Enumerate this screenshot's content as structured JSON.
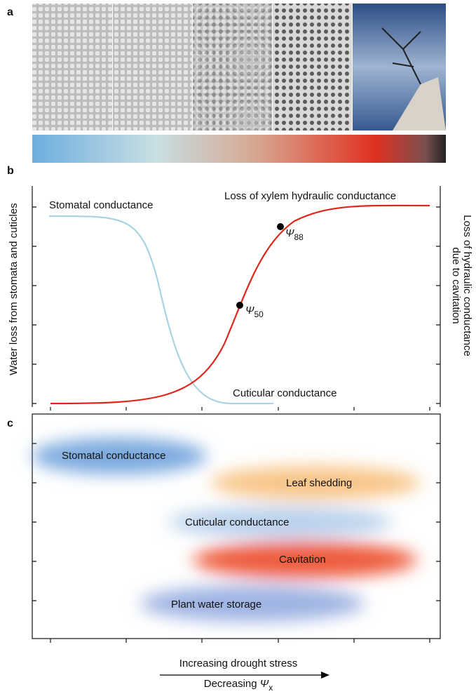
{
  "panels": {
    "a": "a",
    "b": "b",
    "c": "c"
  },
  "panel_b": {
    "y_label": "Water loss from stomata and cuticles",
    "y2_label_line1": "Loss of hydraulic conductance",
    "y2_label_line2": "due to cavitation",
    "stomatal": "Stomatal conductance",
    "xylem": "Loss of xylem hydraulic conductance",
    "cuticular": "Cuticular conductance",
    "psi50": {
      "symbol": "Ψ",
      "sub": "50"
    },
    "psi88": {
      "symbol": "Ψ",
      "sub": "88"
    }
  },
  "panel_c": {
    "labels": [
      "Stomatal conductance",
      "Leaf shedding",
      "Cuticular conductance",
      "Cavitation",
      "Plant water storage"
    ]
  },
  "x_axis": {
    "line1": "Increasing drought stress",
    "line2": {
      "text": "Decreasing ",
      "symbol": "Ψ",
      "sub": "x"
    }
  }
}
